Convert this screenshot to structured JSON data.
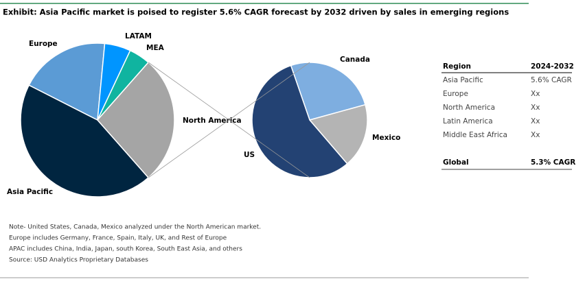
{
  "title": "Exhibit: Asia Pacific market is poised to register 5.6% CAGR forecast by 2032 driven by sales in emerging regions",
  "chart_data": [
    {
      "type": "pie",
      "categories": [
        "Asia Pacific",
        "Europe",
        "LATAM",
        "MEA",
        "North America"
      ],
      "values": [
        44,
        19,
        5.5,
        4.5,
        27
      ],
      "colors": [
        "#002540",
        "#5b9bd5",
        "#0095ff",
        "#10b4a0",
        "#a5a5a5"
      ]
    },
    {
      "type": "pie",
      "categories": [
        "Canada",
        "Mexico",
        "US"
      ],
      "values": [
        26,
        18,
        56
      ],
      "colors": [
        "#7eaee0",
        "#b4b4b4",
        "#234273"
      ]
    }
  ],
  "table": {
    "header": [
      "Region",
      "2024-2032"
    ],
    "rows": [
      [
        "Asia Pacific",
        "5.6% CAGR"
      ],
      [
        "Europe",
        "Xx"
      ],
      [
        "North America",
        "Xx"
      ],
      [
        "Latin America",
        "Xx"
      ],
      [
        "Middle East Africa",
        "Xx"
      ]
    ],
    "footer": [
      "Global",
      "5.3% CAGR"
    ]
  },
  "notes": [
    "Note- United States, Canada, Mexico analyzed under the North American market.",
    "Europe includes Germany, France, Spain, Italy, UK, and Rest of Europe",
    "APAC includes China, India, Japan, south Korea, South East Asia, and others",
    "Source: USD Analytics Proprietary Databases"
  ]
}
